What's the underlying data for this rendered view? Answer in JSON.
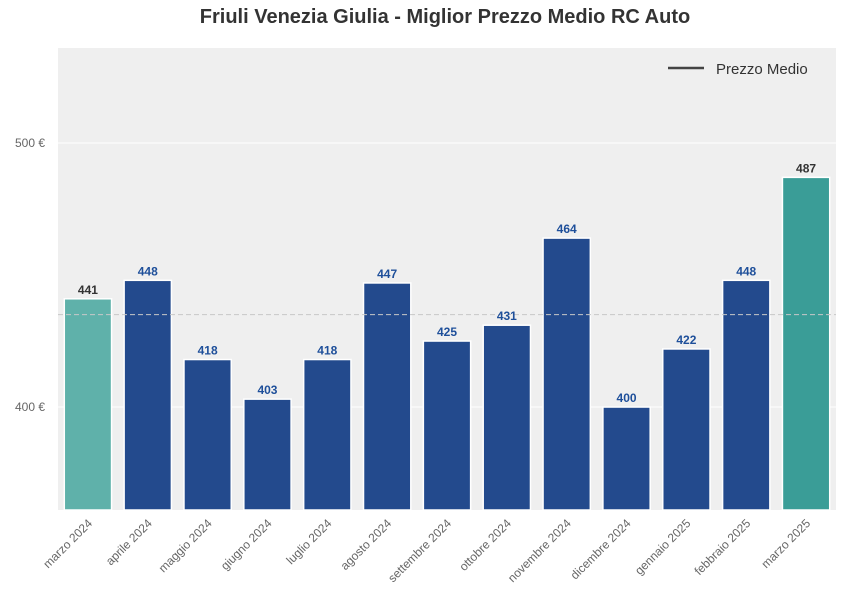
{
  "chart_data": {
    "type": "bar",
    "title": "Friuli Venezia Giulia - Miglior Prezzo Medio RC Auto",
    "xlabel": "",
    "ylabel": "",
    "categories": [
      "marzo 2024",
      "aprile 2024",
      "maggio 2024",
      "giugno 2024",
      "luglio 2024",
      "agosto 2024",
      "settembre 2024",
      "ottobre 2024",
      "novembre 2024",
      "dicembre 2024",
      "gennaio 2025",
      "febbraio 2025",
      "marzo 2025"
    ],
    "values": [
      441,
      448,
      418,
      403,
      418,
      447,
      425,
      431,
      464,
      400,
      422,
      448,
      487
    ],
    "value_labels": [
      "441",
      "448",
      "418",
      "403",
      "418",
      "447",
      "425",
      "431",
      "464",
      "400",
      "422",
      "448",
      "487"
    ],
    "ylim": [
      361,
      536
    ],
    "yticks": [
      400,
      500
    ],
    "ytick_labels": [
      "400 €",
      "500 €"
    ],
    "average_line": 435,
    "legend": {
      "label": "Prezzo Medio",
      "placement": "top-right"
    },
    "grid": true,
    "colors": {
      "first_bar": "#5fb1aa",
      "last_bar": "#3a9d97",
      "middle_bars": "#234a8d",
      "first_label": "#333333",
      "last_label": "#333333",
      "middle_labels": "#1e4f9a",
      "plot_bg": "#efefef",
      "avg_line": "#c8c8c8",
      "legend_line": "#444444"
    }
  }
}
